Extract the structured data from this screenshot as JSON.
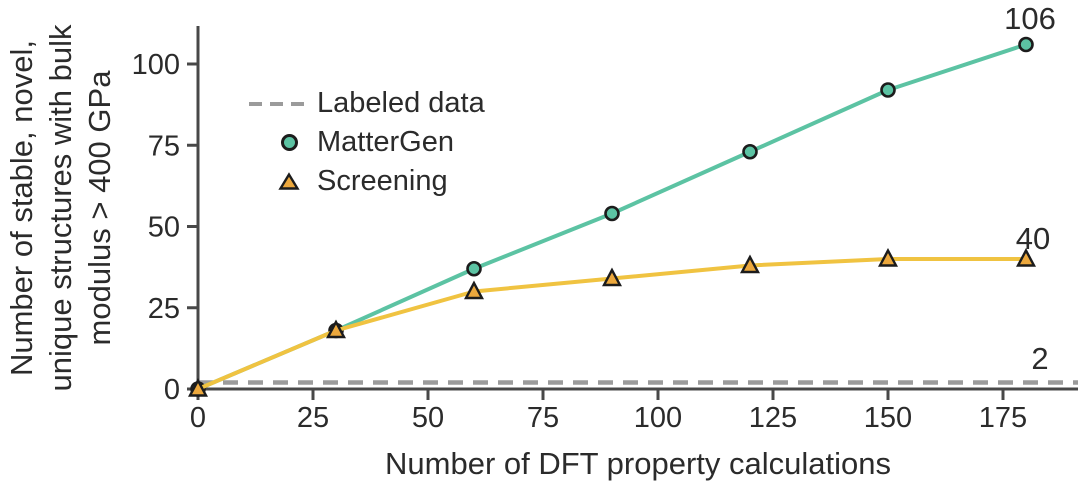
{
  "chart_data": {
    "type": "line",
    "title": "",
    "xlabel": "Number of DFT property calculations",
    "ylabel": "Number of stable, novel, unique structures with bulk modulus > 400 GPa",
    "ylabel_lines": [
      "Number of stable, novel,",
      "unique structures with bulk",
      "modulus > 400 GPa"
    ],
    "x_ticks": [
      0,
      25,
      50,
      75,
      100,
      125,
      150,
      175
    ],
    "y_ticks": [
      0,
      25,
      50,
      75,
      100
    ],
    "xlim": [
      0,
      191
    ],
    "ylim": [
      0,
      111.5
    ],
    "grid": false,
    "legend_position": "upper left inside",
    "x": [
      0,
      30,
      60,
      90,
      120,
      150,
      180
    ],
    "baseline": {
      "name": "Labeled data",
      "y": 2,
      "style": "dashed",
      "color": "#9b9b9b",
      "end_label": "2"
    },
    "series": [
      {
        "name": "MatterGen",
        "marker": "circle",
        "line_color": "#5cc3a3",
        "marker_color": "#5cc3a3",
        "marker_edge": "#1c1c1c",
        "values": [
          0,
          18,
          37,
          54,
          73,
          92,
          106
        ],
        "end_label": "106"
      },
      {
        "name": "Screening",
        "marker": "triangle",
        "line_color": "#f0c341",
        "marker_color": "#eca83d",
        "marker_edge": "#1c1c1c",
        "values": [
          0,
          18,
          30,
          34,
          38,
          40,
          40
        ],
        "end_label": "40"
      }
    ],
    "legend": {
      "items": [
        {
          "label": "Labeled data",
          "handle": "dashed-line",
          "color": "#9b9b9b"
        },
        {
          "label": "MatterGen",
          "handle": "circle",
          "color": "#5cc3a3"
        },
        {
          "label": "Screening",
          "handle": "triangle",
          "color": "#eca83d"
        }
      ]
    },
    "colors": {
      "spine": "#484848",
      "tick_text": "#2b2b2b",
      "background": "#ffffff"
    }
  }
}
